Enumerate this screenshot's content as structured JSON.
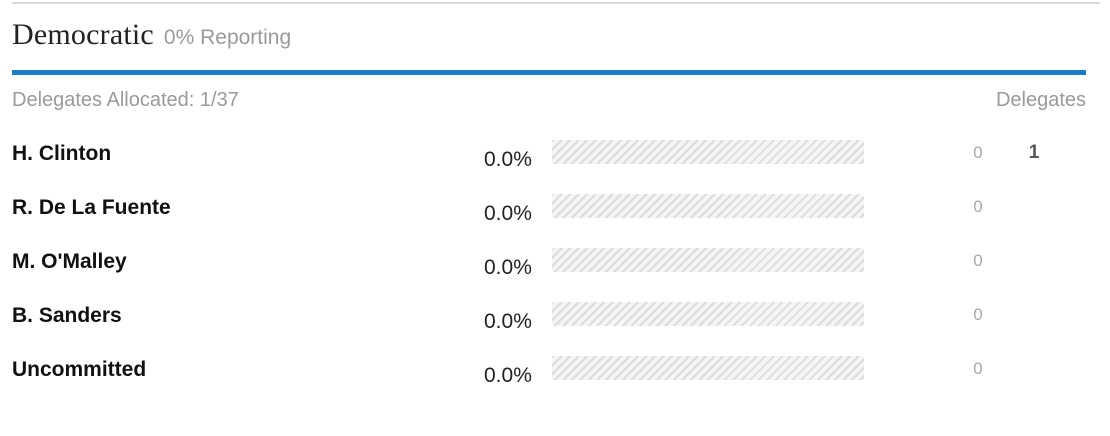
{
  "party": {
    "name": "Democratic",
    "reporting": "0% Reporting",
    "accent_color": "#1a7cc7"
  },
  "summary": {
    "delegates_allocated": "Delegates Allocated: 1/37",
    "delegates_header": "Delegates"
  },
  "candidates": [
    {
      "name": "H. Clinton",
      "percent": "0.0%",
      "bar_fraction": 0,
      "delegates": "0",
      "superdelegates": "1"
    },
    {
      "name": "R. De La Fuente",
      "percent": "0.0%",
      "bar_fraction": 0,
      "delegates": "0",
      "superdelegates": ""
    },
    {
      "name": "M. O'Malley",
      "percent": "0.0%",
      "bar_fraction": 0,
      "delegates": "0",
      "superdelegates": ""
    },
    {
      "name": "B. Sanders",
      "percent": "0.0%",
      "bar_fraction": 0,
      "delegates": "0",
      "superdelegates": ""
    },
    {
      "name": "Uncommitted",
      "percent": "0.0%",
      "bar_fraction": 0,
      "delegates": "0",
      "superdelegates": ""
    }
  ]
}
